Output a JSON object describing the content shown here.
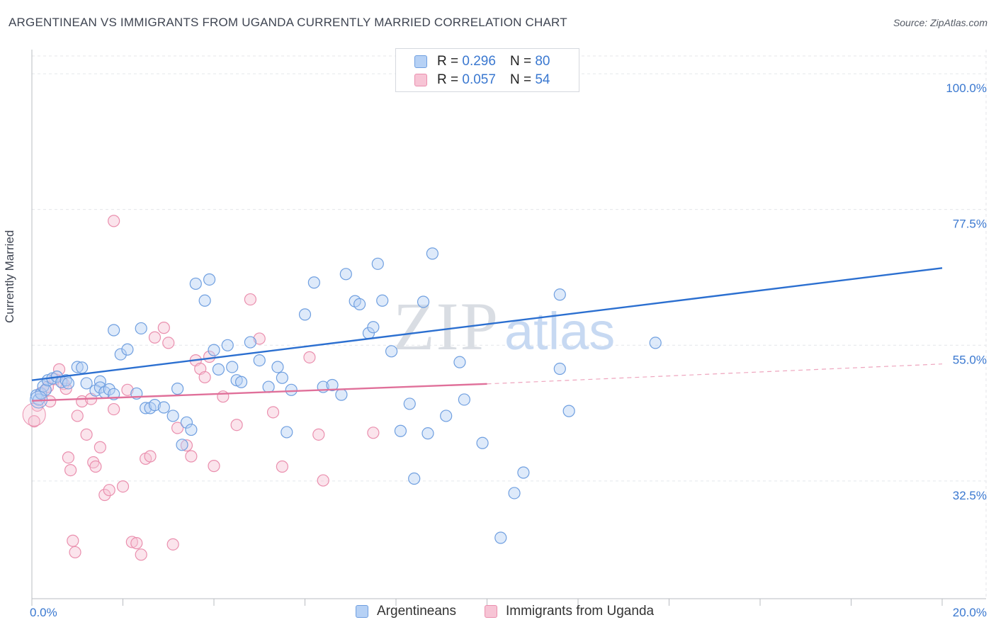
{
  "title": "ARGENTINEAN VS IMMIGRANTS FROM UGANDA CURRENTLY MARRIED CORRELATION CHART",
  "source": "Source: ZipAtlas.com",
  "watermark": {
    "zip": "ZIP",
    "atlas": "atlas"
  },
  "colors": {
    "blue_fill": "#b6d1f5",
    "blue_stroke": "#6f9fe0",
    "blue_line": "#2b6fd0",
    "pink_fill": "#f7c4d5",
    "pink_stroke": "#ea8fae",
    "pink_line": "#e0709a",
    "axis_label": "#3a78d0",
    "grid": "#e4e6ea"
  },
  "legend": {
    "r_label": "R =",
    "n_label": "N =",
    "rows": [
      {
        "r": "0.296",
        "n": "80"
      },
      {
        "r": "0.057",
        "n": "54"
      }
    ]
  },
  "chart_data": {
    "type": "scatter",
    "title": "ARGENTINEAN VS IMMIGRANTS FROM UGANDA CURRENTLY MARRIED CORRELATION CHART",
    "xlabel": "",
    "ylabel": "Currently Married",
    "xlim": [
      0,
      20
    ],
    "ylim": [
      13,
      104
    ],
    "x_tick_labels": [
      {
        "value": 0,
        "label": "0.0%"
      },
      {
        "value": 20,
        "label": "20.0%"
      }
    ],
    "y_tick_labels": [
      {
        "value": 100,
        "label": "100.0%"
      },
      {
        "value": 77.5,
        "label": "77.5%"
      },
      {
        "value": 55,
        "label": "55.0%"
      },
      {
        "value": 32.5,
        "label": "32.5%"
      }
    ],
    "grid": true,
    "series": [
      {
        "name": "Argentineans",
        "color": "#6f9fe0",
        "trend": {
          "x": [
            0,
            20
          ],
          "y": [
            49.2,
            67.8
          ],
          "style": "solid"
        },
        "points": [
          [
            0.1,
            46.7
          ],
          [
            0.15,
            46.0
          ],
          [
            0.2,
            47.0
          ],
          [
            0.25,
            48.2
          ],
          [
            0.3,
            47.6
          ],
          [
            0.35,
            49.2
          ],
          [
            0.45,
            49.5
          ],
          [
            0.55,
            49.8
          ],
          [
            0.65,
            48.9
          ],
          [
            0.75,
            49.2
          ],
          [
            0.8,
            48.7
          ],
          [
            1.0,
            51.4
          ],
          [
            1.1,
            51.3
          ],
          [
            1.2,
            48.7
          ],
          [
            1.5,
            49.0
          ],
          [
            1.4,
            47.5
          ],
          [
            1.5,
            48.0
          ],
          [
            1.6,
            47.2
          ],
          [
            1.7,
            47.7
          ],
          [
            1.8,
            46.9
          ],
          [
            1.8,
            57.5
          ],
          [
            1.95,
            53.5
          ],
          [
            2.1,
            54.3
          ],
          [
            2.4,
            57.8
          ],
          [
            2.3,
            47.0
          ],
          [
            2.5,
            44.6
          ],
          [
            2.6,
            44.6
          ],
          [
            2.7,
            45.1
          ],
          [
            2.9,
            44.7
          ],
          [
            3.1,
            43.3
          ],
          [
            3.2,
            47.8
          ],
          [
            3.3,
            38.5
          ],
          [
            3.4,
            42.2
          ],
          [
            3.5,
            41.0
          ],
          [
            3.6,
            65.2
          ],
          [
            3.8,
            62.4
          ],
          [
            3.9,
            65.9
          ],
          [
            4.0,
            54.2
          ],
          [
            4.1,
            51.0
          ],
          [
            4.3,
            55.0
          ],
          [
            4.4,
            51.4
          ],
          [
            4.5,
            49.2
          ],
          [
            4.6,
            48.9
          ],
          [
            4.8,
            55.5
          ],
          [
            5.0,
            52.5
          ],
          [
            5.2,
            48.1
          ],
          [
            5.4,
            51.4
          ],
          [
            5.5,
            49.6
          ],
          [
            5.6,
            40.6
          ],
          [
            5.7,
            47.6
          ],
          [
            6.0,
            60.1
          ],
          [
            6.2,
            65.4
          ],
          [
            6.4,
            48.1
          ],
          [
            6.6,
            48.4
          ],
          [
            6.8,
            46.8
          ],
          [
            6.9,
            66.8
          ],
          [
            7.1,
            62.3
          ],
          [
            7.2,
            61.8
          ],
          [
            7.4,
            57.0
          ],
          [
            7.5,
            58.0
          ],
          [
            7.6,
            68.5
          ],
          [
            7.7,
            62.4
          ],
          [
            7.9,
            54.0
          ],
          [
            8.1,
            40.8
          ],
          [
            8.3,
            45.3
          ],
          [
            8.4,
            32.9
          ],
          [
            8.6,
            62.2
          ],
          [
            8.7,
            40.4
          ],
          [
            8.8,
            70.2
          ],
          [
            9.1,
            43.3
          ],
          [
            9.4,
            52.2
          ],
          [
            9.5,
            46.0
          ],
          [
            9.9,
            38.8
          ],
          [
            10.3,
            23.1
          ],
          [
            10.6,
            30.5
          ],
          [
            10.8,
            33.9
          ],
          [
            11.6,
            63.4
          ],
          [
            11.6,
            51.1
          ],
          [
            11.8,
            44.1
          ],
          [
            13.7,
            55.4
          ]
        ]
      },
      {
        "name": "Immigrants from Uganda",
        "color": "#ea8fae",
        "trend": {
          "x": [
            0,
            10
          ],
          "y": [
            45.8,
            48.6
          ],
          "style": "solid",
          "extension": {
            "x": [
              10,
              20
            ],
            "y": [
              48.6,
              51.9
            ],
            "style": "dashed"
          }
        },
        "points": [
          [
            0.05,
            42.4
          ],
          [
            0.12,
            45.0
          ],
          [
            0.2,
            47.1
          ],
          [
            0.3,
            47.6
          ],
          [
            0.35,
            48.1
          ],
          [
            0.4,
            45.7
          ],
          [
            0.5,
            49.4
          ],
          [
            0.6,
            51.0
          ],
          [
            0.7,
            48.6
          ],
          [
            0.75,
            47.8
          ],
          [
            0.8,
            36.4
          ],
          [
            0.85,
            34.3
          ],
          [
            0.9,
            22.6
          ],
          [
            0.95,
            20.7
          ],
          [
            1.0,
            43.3
          ],
          [
            1.1,
            45.7
          ],
          [
            1.2,
            40.2
          ],
          [
            1.3,
            46.1
          ],
          [
            1.35,
            35.6
          ],
          [
            1.4,
            34.9
          ],
          [
            1.5,
            38.1
          ],
          [
            1.6,
            30.2
          ],
          [
            1.7,
            31.0
          ],
          [
            1.8,
            75.6
          ],
          [
            1.8,
            44.4
          ],
          [
            2.0,
            31.6
          ],
          [
            2.1,
            47.6
          ],
          [
            2.2,
            22.4
          ],
          [
            2.3,
            22.2
          ],
          [
            2.4,
            20.3
          ],
          [
            2.5,
            36.2
          ],
          [
            2.6,
            36.6
          ],
          [
            2.7,
            56.3
          ],
          [
            2.9,
            57.9
          ],
          [
            3.0,
            55.4
          ],
          [
            3.1,
            22.0
          ],
          [
            3.2,
            41.3
          ],
          [
            3.4,
            38.4
          ],
          [
            3.5,
            36.6
          ],
          [
            3.6,
            52.5
          ],
          [
            3.7,
            51.1
          ],
          [
            3.8,
            49.7
          ],
          [
            3.9,
            53.1
          ],
          [
            4.0,
            35.0
          ],
          [
            4.2,
            46.5
          ],
          [
            4.5,
            41.8
          ],
          [
            4.8,
            62.6
          ],
          [
            5.0,
            56.1
          ],
          [
            5.3,
            43.9
          ],
          [
            5.5,
            34.9
          ],
          [
            6.1,
            53.0
          ],
          [
            6.3,
            40.2
          ],
          [
            6.4,
            32.6
          ],
          [
            7.5,
            40.5
          ]
        ]
      }
    ]
  }
}
